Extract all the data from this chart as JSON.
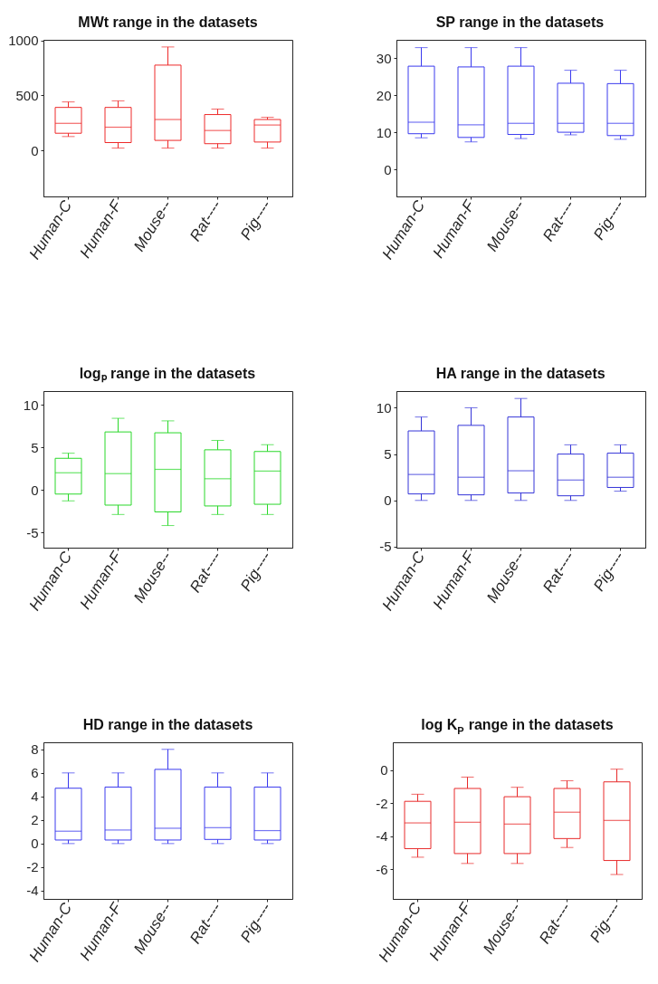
{
  "chart_data": [
    {
      "type": "box",
      "title": "MWt range in the datasets",
      "categories": [
        "Human-C",
        "Human-F",
        "Mouse--",
        "Rat----",
        "Pig----"
      ],
      "color": "#ee2a2a",
      "ylim": [
        -420,
        1005
      ],
      "yticks": [
        0,
        500,
        1000
      ],
      "boxes": [
        {
          "low": 125,
          "q1": 155,
          "median": 245,
          "q3": 390,
          "high": 440
        },
        {
          "low": 20,
          "q1": 70,
          "median": 210,
          "q3": 390,
          "high": 450
        },
        {
          "low": 20,
          "q1": 90,
          "median": 280,
          "q3": 775,
          "high": 940
        },
        {
          "low": 20,
          "q1": 60,
          "median": 180,
          "q3": 325,
          "high": 375
        },
        {
          "low": 20,
          "q1": 75,
          "median": 230,
          "q3": 280,
          "high": 300
        }
      ]
    },
    {
      "type": "box",
      "title": "SP range in the datasets",
      "categories": [
        "Human-C",
        "Human-F",
        "Mouse--",
        "Rat----",
        "Pig----"
      ],
      "color": "#3a3aee",
      "ylim": [
        -7.3,
        34.9
      ],
      "yticks": [
        0,
        10,
        20,
        30
      ],
      "boxes": [
        {
          "low": 8.5,
          "q1": 9.6,
          "median": 12.7,
          "q3": 27.8,
          "high": 32.8
        },
        {
          "low": 7.4,
          "q1": 8.6,
          "median": 12.0,
          "q3": 27.6,
          "high": 32.8
        },
        {
          "low": 8.3,
          "q1": 9.4,
          "median": 12.4,
          "q3": 27.8,
          "high": 32.8
        },
        {
          "low": 9.3,
          "q1": 10.0,
          "median": 12.4,
          "q3": 23.2,
          "high": 26.7
        },
        {
          "low": 8.1,
          "q1": 9.1,
          "median": 12.4,
          "q3": 23.1,
          "high": 26.7
        }
      ]
    },
    {
      "type": "box",
      "title": "logₚ range in the datasets",
      "categories": [
        "Human-C",
        "Human-F",
        "Mouse--",
        "Rat----",
        "Pig----"
      ],
      "color": "#2ad82a",
      "ylim": [
        -6.8,
        11.6
      ],
      "yticks": [
        -5,
        0,
        5,
        10
      ],
      "boxes": [
        {
          "low": -1.3,
          "q1": -0.5,
          "median": 2.0,
          "q3": 3.7,
          "high": 4.3
        },
        {
          "low": -2.9,
          "q1": -1.8,
          "median": 1.9,
          "q3": 6.8,
          "high": 8.4
        },
        {
          "low": -4.2,
          "q1": -2.6,
          "median": 2.4,
          "q3": 6.7,
          "high": 8.1
        },
        {
          "low": -2.9,
          "q1": -1.9,
          "median": 1.3,
          "q3": 4.7,
          "high": 5.8
        },
        {
          "low": -2.9,
          "q1": -1.7,
          "median": 2.2,
          "q3": 4.5,
          "high": 5.3
        }
      ]
    },
    {
      "type": "box",
      "title": "HA range in the datasets",
      "categories": [
        "Human-C",
        "Human-F",
        "Mouse--",
        "Rat----",
        "Pig----"
      ],
      "color": "#3434d8",
      "ylim": [
        -5.1,
        11.8
      ],
      "yticks": [
        -5,
        0,
        5,
        10
      ],
      "boxes": [
        {
          "low": 0,
          "q1": 0.7,
          "median": 2.8,
          "q3": 7.5,
          "high": 9
        },
        {
          "low": 0,
          "q1": 0.6,
          "median": 2.5,
          "q3": 8.1,
          "high": 10
        },
        {
          "low": 0,
          "q1": 0.8,
          "median": 3.2,
          "q3": 9.0,
          "high": 11
        },
        {
          "low": 0,
          "q1": 0.5,
          "median": 2.2,
          "q3": 5.0,
          "high": 6
        },
        {
          "low": 1.0,
          "q1": 1.4,
          "median": 2.5,
          "q3": 5.1,
          "high": 6
        }
      ]
    },
    {
      "type": "box",
      "title": "HD range in the datasets",
      "categories": [
        "Human-C",
        "Human-F",
        "Mouse--",
        "Rat----",
        "Pig----"
      ],
      "color": "#3a3aee",
      "ylim": [
        -4.7,
        8.6
      ],
      "yticks": [
        -4,
        -2,
        0,
        2,
        4,
        6,
        8
      ],
      "boxes": [
        {
          "low": 0,
          "q1": 0.3,
          "median": 1.05,
          "q3": 4.7,
          "high": 6
        },
        {
          "low": 0,
          "q1": 0.3,
          "median": 1.15,
          "q3": 4.8,
          "high": 6
        },
        {
          "low": 0,
          "q1": 0.3,
          "median": 1.3,
          "q3": 6.3,
          "high": 8
        },
        {
          "low": 0,
          "q1": 0.35,
          "median": 1.35,
          "q3": 4.8,
          "high": 6
        },
        {
          "low": 0,
          "q1": 0.3,
          "median": 1.1,
          "q3": 4.8,
          "high": 6
        }
      ]
    },
    {
      "type": "box",
      "title": "log K$_{P}$ range in the datasets",
      "categories": [
        "Human-C",
        "Human-F",
        "Mouse--",
        "Rat----",
        "Pig----"
      ],
      "color": "#e82a2a",
      "ylim": [
        -7.8,
        1.7
      ],
      "yticks": [
        -6,
        -4,
        -2,
        0
      ],
      "boxes": [
        {
          "low": -5.27,
          "q1": -4.75,
          "median": -3.19,
          "q3": -1.88,
          "high": -1.45
        },
        {
          "low": -5.65,
          "q1": -5.05,
          "median": -3.15,
          "q3": -1.1,
          "high": -0.41
        },
        {
          "low": -5.65,
          "q1": -5.05,
          "median": -3.26,
          "q3": -1.6,
          "high": -1.03
        },
        {
          "low": -4.68,
          "q1": -4.14,
          "median": -2.54,
          "q3": -1.1,
          "high": -0.63
        },
        {
          "low": -6.32,
          "q1": -5.47,
          "median": -3.04,
          "q3": -0.7,
          "high": 0.07
        }
      ]
    }
  ]
}
